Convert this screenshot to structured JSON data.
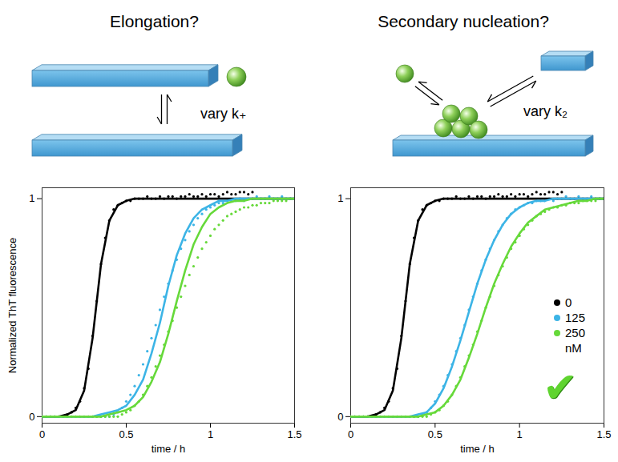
{
  "chart_data": [
    {
      "type": "scatter",
      "title": "Elongation?",
      "schematic_label": "vary k₊",
      "xlabel": "time / h",
      "ylabel": "Normalized ThT fluorescence",
      "xlim": [
        0,
        1.5
      ],
      "ylim": [
        -0.03,
        1.05
      ],
      "xticks": [
        0,
        0.5,
        1,
        1.5
      ],
      "yticks": [
        0,
        1
      ],
      "grid": false,
      "marker": "circle",
      "line_style": "solid",
      "x": [
        0,
        0.025,
        0.05,
        0.075,
        0.1,
        0.125,
        0.15,
        0.175,
        0.2,
        0.225,
        0.25,
        0.275,
        0.3,
        0.325,
        0.35,
        0.375,
        0.4,
        0.425,
        0.45,
        0.475,
        0.5,
        0.525,
        0.55,
        0.575,
        0.6,
        0.625,
        0.65,
        0.675,
        0.7,
        0.725,
        0.75,
        0.775,
        0.8,
        0.825,
        0.85,
        0.875,
        0.9,
        0.925,
        0.95,
        0.975,
        1,
        1.025,
        1.05,
        1.075,
        1.1,
        1.125,
        1.15,
        1.175,
        1.2,
        1.225,
        1.25,
        1.275,
        1.3,
        1.325,
        1.35,
        1.375,
        1.4,
        1.425,
        1.45,
        1.475,
        1.5
      ],
      "fit_x": [
        0,
        0.05,
        0.1,
        0.15,
        0.2,
        0.25,
        0.3,
        0.35,
        0.4,
        0.45,
        0.5,
        0.55,
        0.6,
        0.65,
        0.7,
        0.75,
        0.8,
        0.85,
        0.9,
        0.95,
        1,
        1.05,
        1.1,
        1.15,
        1.2,
        1.25,
        1.3,
        1.35,
        1.4,
        1.45,
        1.5
      ],
      "series": [
        {
          "name": "0",
          "color": "#000000",
          "values": [
            0,
            0,
            0,
            0,
            0,
            0,
            0.01,
            0.02,
            0.04,
            0.07,
            0.13,
            0.22,
            0.37,
            0.53,
            0.7,
            0.82,
            0.9,
            0.95,
            0.97,
            0.98,
            0.99,
            0.99,
            1,
            1,
            1,
            1.01,
            1,
            1,
            1.01,
            1,
            1.01,
            1.01,
            1,
            1.01,
            1.01,
            1.02,
            1.01,
            1.01,
            1.02,
            1.01,
            1.02,
            1.02,
            1.01,
            1.02,
            1.03,
            1.02,
            1.02,
            1.03,
            1.03,
            1.02,
            1.03,
            null,
            null,
            null,
            null,
            null,
            null,
            null,
            null,
            null,
            null
          ],
          "fit": [
            0,
            0,
            0,
            0.01,
            0.03,
            0.12,
            0.36,
            0.7,
            0.9,
            0.97,
            0.99,
            1,
            1,
            1,
            1,
            1,
            1,
            1,
            1,
            1,
            1,
            1,
            1,
            1,
            1,
            1,
            1,
            1,
            1,
            1,
            1
          ]
        },
        {
          "name": "125",
          "color": "#3cb4e6",
          "values": [
            0,
            0,
            0,
            0,
            0,
            0,
            0,
            0,
            0,
            0,
            0,
            0,
            0,
            0,
            0,
            0,
            0,
            0.01,
            0.02,
            0.04,
            0.07,
            0.1,
            0.14,
            0.19,
            0.24,
            0.3,
            0.36,
            0.42,
            0.49,
            0.55,
            0.61,
            0.67,
            0.72,
            0.77,
            0.81,
            0.85,
            0.88,
            0.91,
            0.93,
            0.95,
            0.96,
            0.97,
            0.98,
            0.98,
            0.99,
            0.99,
            0.99,
            1,
            0.99,
            1,
            1,
            1.01,
            1,
            1,
            1.01,
            1,
            1,
            1.01,
            1,
            1,
            1
          ],
          "fit": [
            0,
            0,
            0,
            0,
            0,
            0,
            0,
            0.01,
            0.02,
            0.03,
            0.05,
            0.1,
            0.17,
            0.29,
            0.43,
            0.6,
            0.74,
            0.84,
            0.91,
            0.95,
            0.97,
            0.99,
            0.99,
            1,
            1,
            1,
            1,
            1,
            1,
            1,
            1
          ]
        },
        {
          "name": "250 nM",
          "color": "#66d93a",
          "values": [
            0,
            0,
            0,
            0,
            0,
            0,
            0,
            0,
            0,
            0,
            0,
            0,
            0,
            0,
            0,
            0,
            0,
            0,
            0,
            0.01,
            0.02,
            0.03,
            0.05,
            0.07,
            0.1,
            0.14,
            0.18,
            0.23,
            0.28,
            0.33,
            0.39,
            0.44,
            0.5,
            0.55,
            0.6,
            0.65,
            0.69,
            0.73,
            0.77,
            0.8,
            0.83,
            0.86,
            0.88,
            0.9,
            0.92,
            0.93,
            0.94,
            0.95,
            0.96,
            0.96,
            0.97,
            0.97,
            0.98,
            0.98,
            0.98,
            0.99,
            0.99,
            0.99,
            0.99,
            1,
            1
          ],
          "fit": [
            0,
            0,
            0,
            0,
            0,
            0,
            0,
            0,
            0.01,
            0.02,
            0.03,
            0.05,
            0.09,
            0.16,
            0.25,
            0.38,
            0.53,
            0.67,
            0.79,
            0.87,
            0.93,
            0.96,
            0.98,
            0.99,
            0.99,
            1,
            1,
            1,
            1,
            1,
            1
          ]
        }
      ]
    },
    {
      "type": "scatter",
      "title": "Secondary nucleation?",
      "schematic_label": "vary k₂",
      "verdict": "✔",
      "xlabel": "time / h",
      "xlim": [
        0,
        1.5
      ],
      "ylim": [
        -0.03,
        1.05
      ],
      "xticks": [
        0,
        0.5,
        1,
        1.5
      ],
      "yticks": [
        0,
        1
      ],
      "grid": false,
      "marker": "circle",
      "line_style": "solid",
      "legend": "right",
      "x": [
        0,
        0.025,
        0.05,
        0.075,
        0.1,
        0.125,
        0.15,
        0.175,
        0.2,
        0.225,
        0.25,
        0.275,
        0.3,
        0.325,
        0.35,
        0.375,
        0.4,
        0.425,
        0.45,
        0.475,
        0.5,
        0.525,
        0.55,
        0.575,
        0.6,
        0.625,
        0.65,
        0.675,
        0.7,
        0.725,
        0.75,
        0.775,
        0.8,
        0.825,
        0.85,
        0.875,
        0.9,
        0.925,
        0.95,
        0.975,
        1,
        1.025,
        1.05,
        1.075,
        1.1,
        1.125,
        1.15,
        1.175,
        1.2,
        1.225,
        1.25,
        1.275,
        1.3,
        1.325,
        1.35,
        1.375,
        1.4,
        1.425,
        1.45,
        1.475,
        1.5
      ],
      "fit_x": [
        0,
        0.05,
        0.1,
        0.15,
        0.2,
        0.25,
        0.3,
        0.35,
        0.4,
        0.45,
        0.5,
        0.55,
        0.6,
        0.65,
        0.7,
        0.75,
        0.8,
        0.85,
        0.9,
        0.95,
        1,
        1.05,
        1.1,
        1.15,
        1.2,
        1.25,
        1.3,
        1.35,
        1.4,
        1.45,
        1.5
      ],
      "series": [
        {
          "name": "0",
          "color": "#000000",
          "values": [
            0,
            0,
            0,
            0,
            0,
            0,
            0.01,
            0.02,
            0.04,
            0.07,
            0.13,
            0.22,
            0.37,
            0.53,
            0.7,
            0.82,
            0.9,
            0.95,
            0.97,
            0.98,
            0.99,
            0.99,
            1,
            1,
            1,
            1.01,
            1,
            1,
            1.01,
            1,
            1.01,
            1.01,
            1,
            1.01,
            1.01,
            1.02,
            1.01,
            1.01,
            1.02,
            1.01,
            1.02,
            1.02,
            1.01,
            1.02,
            1.03,
            1.02,
            1.02,
            1.03,
            1.03,
            1.02,
            1.03,
            null,
            null,
            null,
            null,
            null,
            null,
            null,
            null,
            null,
            null
          ],
          "fit": [
            0,
            0,
            0,
            0.01,
            0.03,
            0.12,
            0.36,
            0.7,
            0.9,
            0.97,
            0.99,
            1,
            1,
            1,
            1,
            1,
            1,
            1,
            1,
            1,
            1,
            1,
            1,
            1,
            1,
            1,
            1,
            1,
            1,
            1,
            1
          ]
        },
        {
          "name": "125",
          "color": "#3cb4e6",
          "values": [
            0,
            0,
            0,
            0,
            0,
            0,
            0,
            0,
            0,
            0,
            0,
            0,
            0,
            0,
            0,
            0,
            0,
            0.01,
            0.02,
            0.04,
            0.07,
            0.1,
            0.14,
            0.19,
            0.24,
            0.3,
            0.36,
            0.42,
            0.49,
            0.55,
            0.61,
            0.67,
            0.72,
            0.77,
            0.81,
            0.85,
            0.88,
            0.91,
            0.93,
            0.95,
            0.96,
            0.97,
            0.98,
            0.98,
            0.99,
            0.99,
            0.99,
            1,
            0.99,
            1,
            1,
            1.01,
            1,
            1,
            1.01,
            1,
            1,
            1.01,
            1,
            1,
            1
          ],
          "fit": [
            0,
            0,
            0,
            0,
            0,
            0,
            0,
            0,
            0.01,
            0.02,
            0.06,
            0.13,
            0.23,
            0.35,
            0.48,
            0.61,
            0.72,
            0.81,
            0.88,
            0.93,
            0.96,
            0.98,
            0.99,
            0.99,
            1,
            1,
            1,
            1,
            1,
            1,
            1
          ]
        },
        {
          "name": "250 nM",
          "color": "#66d93a",
          "values": [
            0,
            0,
            0,
            0,
            0,
            0,
            0,
            0,
            0,
            0,
            0,
            0,
            0,
            0,
            0,
            0,
            0,
            0,
            0,
            0.01,
            0.02,
            0.03,
            0.05,
            0.07,
            0.1,
            0.14,
            0.18,
            0.23,
            0.28,
            0.33,
            0.39,
            0.44,
            0.5,
            0.55,
            0.6,
            0.65,
            0.69,
            0.73,
            0.77,
            0.8,
            0.83,
            0.86,
            0.88,
            0.9,
            0.92,
            0.93,
            0.94,
            0.95,
            0.96,
            0.96,
            0.97,
            0.97,
            0.98,
            0.98,
            0.98,
            0.99,
            0.99,
            0.99,
            0.99,
            1,
            1
          ],
          "fit": [
            0,
            0,
            0,
            0,
            0,
            0,
            0,
            0,
            0,
            0.01,
            0.02,
            0.05,
            0.1,
            0.17,
            0.27,
            0.38,
            0.5,
            0.61,
            0.7,
            0.78,
            0.84,
            0.89,
            0.92,
            0.95,
            0.96,
            0.97,
            0.98,
            0.99,
            0.99,
            1,
            1
          ]
        }
      ]
    }
  ]
}
